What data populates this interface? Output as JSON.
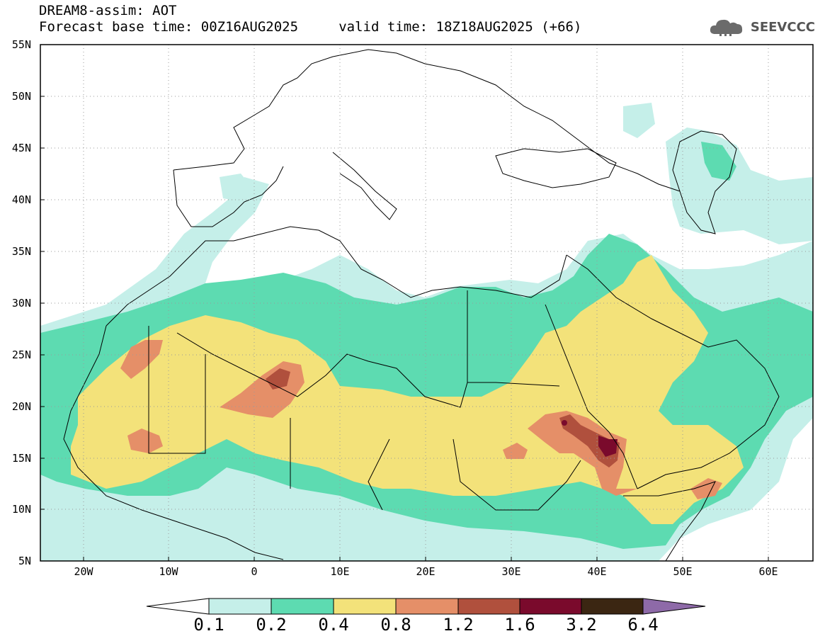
{
  "header": {
    "title": "DREAM8-assim: AOT",
    "subtitle": "Forecast base time: 00Z16AUG2025     valid time: 18Z18AUG2025 (+66)",
    "logo_text": "SEEVCCC"
  },
  "map": {
    "lat_labels": [
      "55N",
      "50N",
      "45N",
      "40N",
      "35N",
      "30N",
      "25N",
      "20N",
      "15N",
      "10N",
      "5N"
    ],
    "lon_labels": [
      "20W",
      "10W",
      "0",
      "10E",
      "20E",
      "30E",
      "40E",
      "50E",
      "60E"
    ],
    "lat_range": [
      5,
      55
    ],
    "lon_range": [
      -25,
      65
    ],
    "grid": "dotted"
  },
  "colorbar": {
    "labels": [
      "0.1",
      "0.2",
      "0.4",
      "0.8",
      "1.2",
      "1.6",
      "3.2",
      "6.4"
    ],
    "colors": {
      "under": "#ffffff",
      "c1": "#c5efe9",
      "c2": "#5ddbb1",
      "c3": "#f3e27a",
      "c4": "#e58f68",
      "c5": "#b0503d",
      "c6": "#7a0a2c",
      "c7": "#3b2612",
      "over": "#8e6aa8"
    }
  }
}
